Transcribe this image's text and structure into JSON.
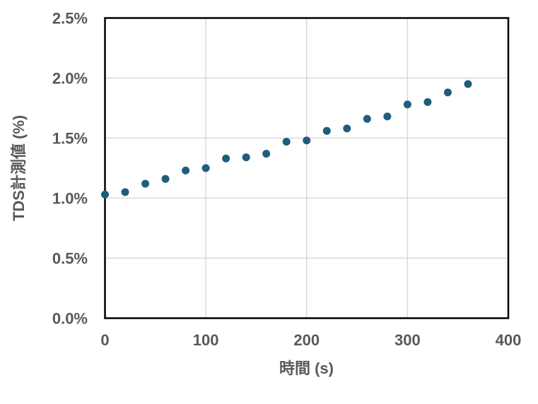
{
  "chart_data": {
    "type": "scatter",
    "title": "",
    "xlabel": "時間 (s)",
    "ylabel": "TDS計測値 (%)",
    "x": [
      0,
      20,
      40,
      60,
      80,
      100,
      120,
      140,
      160,
      180,
      200,
      220,
      240,
      260,
      280,
      300,
      320,
      340,
      360
    ],
    "y": [
      1.03,
      1.05,
      1.12,
      1.16,
      1.23,
      1.25,
      1.33,
      1.34,
      1.37,
      1.47,
      1.48,
      1.56,
      1.58,
      1.66,
      1.68,
      1.78,
      1.8,
      1.88,
      1.95
    ],
    "xlim": [
      0,
      400
    ],
    "ylim": [
      0,
      2.5
    ],
    "x_ticks": [
      0,
      100,
      200,
      300,
      400
    ],
    "x_tick_labels": [
      "0",
      "100",
      "200",
      "300",
      "400"
    ],
    "y_ticks": [
      0,
      0.5,
      1.0,
      1.5,
      2.0,
      2.5
    ],
    "y_tick_labels": [
      "0.0%",
      "0.5%",
      "1.0%",
      "1.5%",
      "2.0%",
      "2.5%"
    ],
    "grid": true,
    "legend": null,
    "colors": {
      "marker": "#1F5C7D",
      "gridline": "#D9D9D9",
      "axis_border": "#000000",
      "label_text": "#595959",
      "background": "#FFFFFF"
    }
  }
}
